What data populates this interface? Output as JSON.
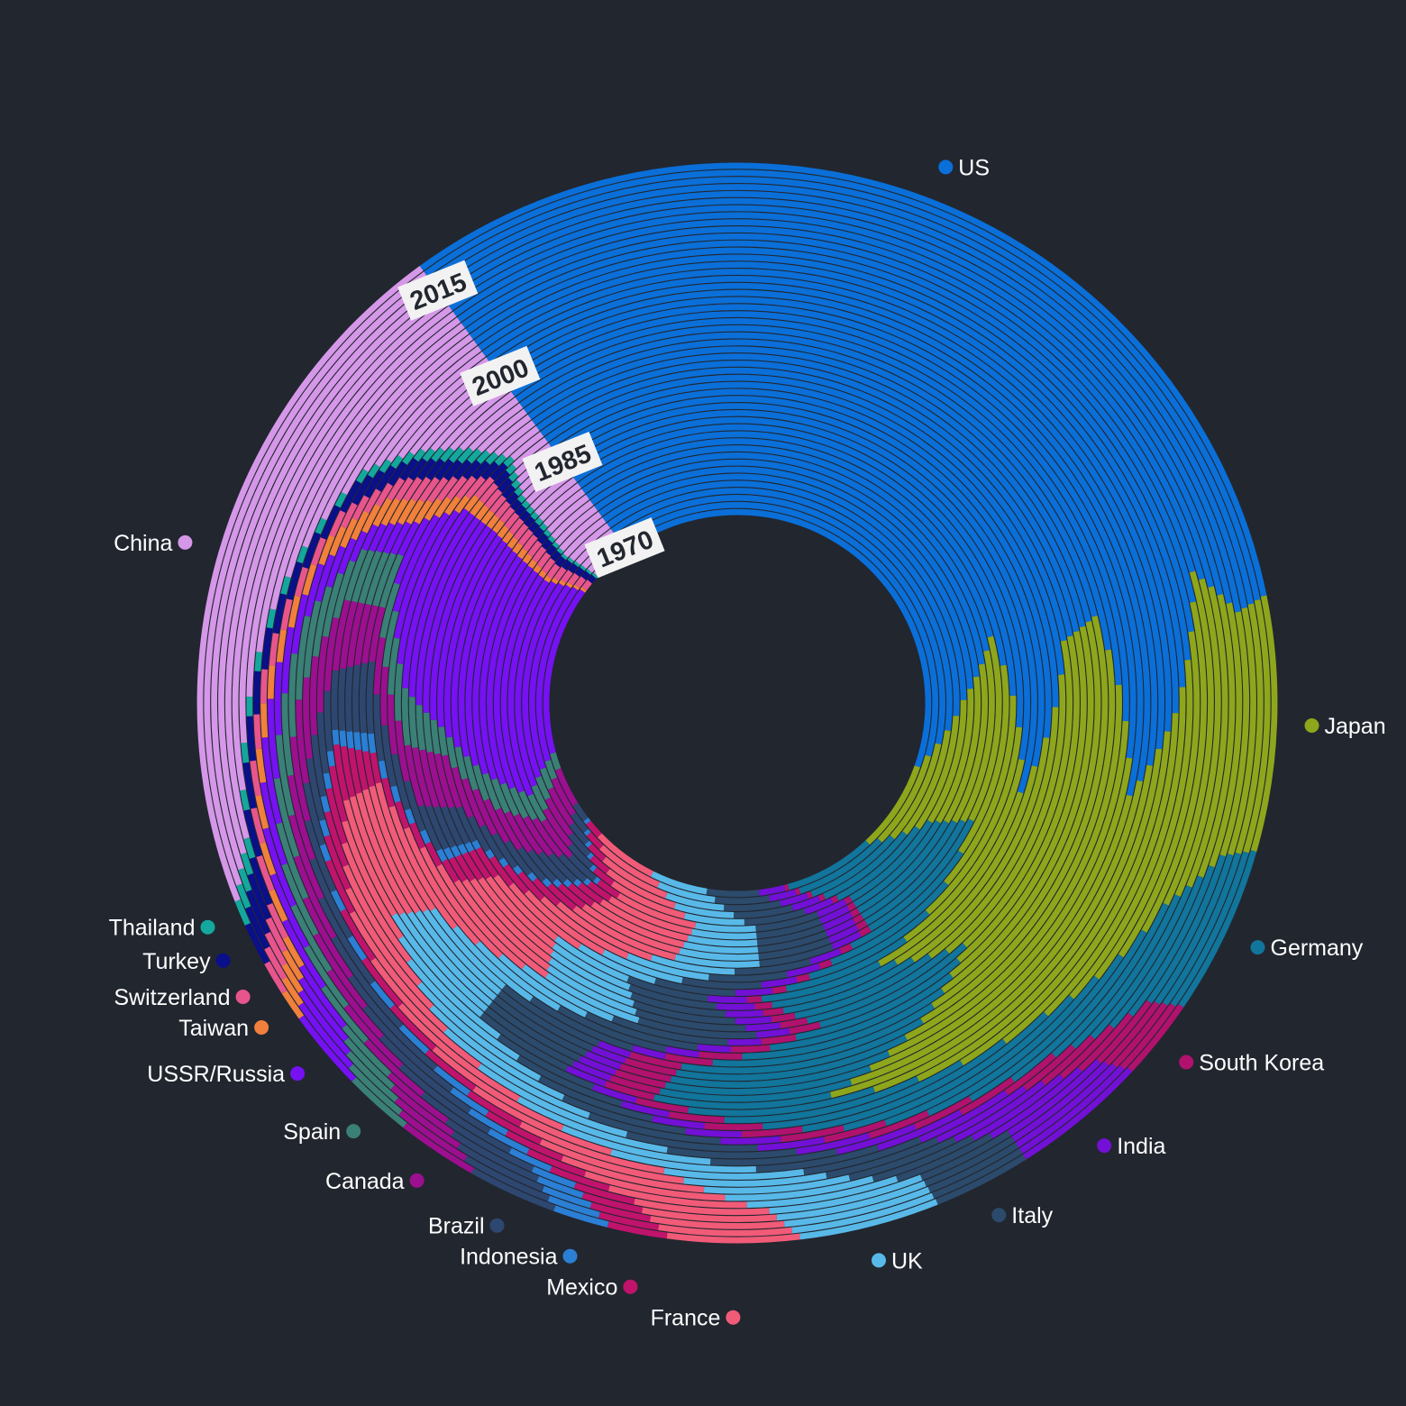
{
  "chart_data": {
    "type": "radial-stacked-area",
    "title": "",
    "start_year": 1970,
    "end_year": 2019,
    "year_labels": [
      "1970",
      "1985",
      "2000",
      "2015"
    ],
    "series": [
      {
        "name": "US",
        "color": "#0a6fd8",
        "values": [
          [
            1970,
            37
          ],
          [
            1975,
            31
          ],
          [
            1980,
            27
          ],
          [
            1985,
            36
          ],
          [
            1990,
            28
          ],
          [
            1995,
            26
          ],
          [
            2000,
            33
          ],
          [
            2005,
            29
          ],
          [
            2010,
            24
          ],
          [
            2015,
            25
          ],
          [
            2019,
            25
          ]
        ]
      },
      {
        "name": "Japan",
        "color": "#8ea61b",
        "values": [
          [
            1970,
            7
          ],
          [
            1975,
            8
          ],
          [
            1980,
            10
          ],
          [
            1985,
            11
          ],
          [
            1990,
            14
          ],
          [
            1995,
            17
          ],
          [
            2000,
            15
          ],
          [
            2005,
            10
          ],
          [
            2010,
            9
          ],
          [
            2015,
            6
          ],
          [
            2019,
            6
          ]
        ]
      },
      {
        "name": "Germany",
        "color": "#11759c",
        "values": [
          [
            1970,
            7
          ],
          [
            1975,
            7
          ],
          [
            1980,
            8
          ],
          [
            1985,
            6
          ],
          [
            1990,
            7
          ],
          [
            1995,
            9
          ],
          [
            2000,
            6
          ],
          [
            2005,
            7
          ],
          [
            2010,
            5
          ],
          [
            2015,
            4
          ],
          [
            2019,
            4
          ]
        ]
      },
      {
        "name": "South Korea",
        "color": "#b0126e",
        "values": [
          [
            1970,
            0.3
          ],
          [
            1975,
            0.4
          ],
          [
            1980,
            0.6
          ],
          [
            1985,
            0.7
          ],
          [
            1990,
            1.3
          ],
          [
            1995,
            1.9
          ],
          [
            2000,
            1.7
          ],
          [
            2005,
            1.9
          ],
          [
            2010,
            1.6
          ],
          [
            2015,
            1.9
          ],
          [
            2019,
            1.9
          ]
        ]
      },
      {
        "name": "India",
        "color": "#7210d6",
        "values": [
          [
            1970,
            2.0
          ],
          [
            1975,
            1.9
          ],
          [
            1980,
            1.6
          ],
          [
            1985,
            1.9
          ],
          [
            1990,
            1.4
          ],
          [
            1995,
            1.2
          ],
          [
            2000,
            1.4
          ],
          [
            2005,
            1.8
          ],
          [
            2010,
            2.6
          ],
          [
            2015,
            2.8
          ],
          [
            2019,
            3.2
          ]
        ]
      },
      {
        "name": "Italy",
        "color": "#2c4a6b",
        "values": [
          [
            1970,
            4
          ],
          [
            1975,
            4
          ],
          [
            1980,
            4
          ],
          [
            1985,
            4
          ],
          [
            1990,
            5
          ],
          [
            1995,
            4
          ],
          [
            2000,
            3.4
          ],
          [
            2005,
            4
          ],
          [
            2010,
            3.2
          ],
          [
            2015,
            2.4
          ],
          [
            2019,
            2.3
          ]
        ]
      },
      {
        "name": "UK",
        "color": "#58b9e8",
        "values": [
          [
            1970,
            4.4
          ],
          [
            1975,
            3.8
          ],
          [
            1980,
            4.5
          ],
          [
            1985,
            4.0
          ],
          [
            1990,
            4.3
          ],
          [
            1995,
            3.8
          ],
          [
            2000,
            4.5
          ],
          [
            2005,
            5.0
          ],
          [
            2010,
            3.7
          ],
          [
            2015,
            3.8
          ],
          [
            2019,
            3.3
          ]
        ]
      },
      {
        "name": "France",
        "color": "#f15b78",
        "values": [
          [
            1970,
            5.0
          ],
          [
            1975,
            5.2
          ],
          [
            1980,
            6.0
          ],
          [
            1985,
            4.2
          ],
          [
            1990,
            5.5
          ],
          [
            1995,
            5.0
          ],
          [
            2000,
            4.2
          ],
          [
            2005,
            4.5
          ],
          [
            2010,
            4.0
          ],
          [
            2015,
            3.3
          ],
          [
            2019,
            3.1
          ]
        ]
      },
      {
        "name": "Mexico",
        "color": "#c0136c",
        "values": [
          [
            1970,
            1.3
          ],
          [
            1975,
            1.5
          ],
          [
            1980,
            1.8
          ],
          [
            1985,
            1.6
          ],
          [
            1990,
            1.0
          ],
          [
            1995,
            1.1
          ],
          [
            2000,
            1.9
          ],
          [
            2005,
            1.7
          ],
          [
            2010,
            1.6
          ],
          [
            2015,
            1.5
          ],
          [
            2019,
            1.4
          ]
        ]
      },
      {
        "name": "Indonesia",
        "color": "#2b7fd4",
        "values": [
          [
            1970,
            0.3
          ],
          [
            1975,
            0.3
          ],
          [
            1980,
            0.4
          ],
          [
            1985,
            0.4
          ],
          [
            1990,
            0.5
          ],
          [
            1995,
            0.7
          ],
          [
            2000,
            0.5
          ],
          [
            2005,
            0.5
          ],
          [
            2010,
            1.1
          ],
          [
            2015,
            1.1
          ],
          [
            2019,
            1.3
          ]
        ]
      },
      {
        "name": "Brazil",
        "color": "#2d4770",
        "values": [
          [
            1970,
            1.4
          ],
          [
            1975,
            2.1
          ],
          [
            1980,
            2.1
          ],
          [
            1985,
            1.8
          ],
          [
            1990,
            2.0
          ],
          [
            1995,
            2.6
          ],
          [
            2000,
            2.0
          ],
          [
            2005,
            1.9
          ],
          [
            2010,
            3.3
          ],
          [
            2015,
            2.4
          ],
          [
            2019,
            2.1
          ]
        ]
      },
      {
        "name": "Canada",
        "color": "#9c0f8f",
        "values": [
          [
            1970,
            3.0
          ],
          [
            1975,
            2.8
          ],
          [
            1980,
            2.4
          ],
          [
            1985,
            2.6
          ],
          [
            1990,
            2.6
          ],
          [
            1995,
            2.0
          ],
          [
            2000,
            2.4
          ],
          [
            2005,
            2.5
          ],
          [
            2010,
            2.4
          ],
          [
            2015,
            1.8
          ],
          [
            2019,
            1.9
          ]
        ]
      },
      {
        "name": "Spain",
        "color": "#3a8076",
        "values": [
          [
            1970,
            1.3
          ],
          [
            1975,
            1.8
          ],
          [
            1980,
            2.0
          ],
          [
            1985,
            1.4
          ],
          [
            1990,
            2.4
          ],
          [
            1995,
            2.0
          ],
          [
            2000,
            1.8
          ],
          [
            2005,
            2.5
          ],
          [
            2010,
            2.1
          ],
          [
            2015,
            1.6
          ],
          [
            2019,
            1.6
          ]
        ]
      },
      {
        "name": "USSR/Russia",
        "color": "#7511f2",
        "values": [
          [
            1970,
            13
          ],
          [
            1975,
            14
          ],
          [
            1980,
            12
          ],
          [
            1985,
            10
          ],
          [
            1990,
            8
          ],
          [
            1995,
            1.3
          ],
          [
            2000,
            0.9
          ],
          [
            2005,
            1.6
          ],
          [
            2010,
            2.3
          ],
          [
            2015,
            1.8
          ],
          [
            2019,
            1.9
          ]
        ]
      },
      {
        "name": "Taiwan",
        "color": "#f0803c",
        "values": [
          [
            1970,
            0.2
          ],
          [
            1975,
            0.3
          ],
          [
            1980,
            0.5
          ],
          [
            1985,
            0.6
          ],
          [
            1990,
            0.7
          ],
          [
            1995,
            0.9
          ],
          [
            2000,
            1.0
          ],
          [
            2005,
            0.9
          ],
          [
            2010,
            0.9
          ],
          [
            2015,
            0.8
          ],
          [
            2019,
            0.7
          ]
        ]
      },
      {
        "name": "Switzerland",
        "color": "#e8558c",
        "values": [
          [
            1970,
            0.7
          ],
          [
            1975,
            0.9
          ],
          [
            1980,
            0.9
          ],
          [
            1985,
            0.8
          ],
          [
            1990,
            1.0
          ],
          [
            1995,
            1.0
          ],
          [
            2000,
            0.8
          ],
          [
            2005,
            0.8
          ],
          [
            2010,
            0.9
          ],
          [
            2015,
            0.9
          ],
          [
            2019,
            0.8
          ]
        ]
      },
      {
        "name": "Turkey",
        "color": "#0a0f8a",
        "values": [
          [
            1970,
            0.5
          ],
          [
            1975,
            0.6
          ],
          [
            1980,
            0.5
          ],
          [
            1985,
            0.5
          ],
          [
            1990,
            0.8
          ],
          [
            1995,
            0.8
          ],
          [
            2000,
            0.8
          ],
          [
            2005,
            1.0
          ],
          [
            2010,
            1.1
          ],
          [
            2015,
            1.2
          ],
          [
            2019,
            1.0
          ]
        ]
      },
      {
        "name": "Thailand",
        "color": "#14a79d",
        "values": [
          [
            1970,
            0.2
          ],
          [
            1975,
            0.2
          ],
          [
            1980,
            0.3
          ],
          [
            1985,
            0.3
          ],
          [
            1990,
            0.4
          ],
          [
            1995,
            0.6
          ],
          [
            2000,
            0.4
          ],
          [
            2005,
            0.4
          ],
          [
            2010,
            0.5
          ],
          [
            2015,
            0.5
          ],
          [
            2019,
            0.6
          ]
        ]
      },
      {
        "name": "China",
        "color": "#d597e8",
        "values": [
          [
            1970,
            3.0
          ],
          [
            1975,
            3.3
          ],
          [
            1980,
            2.7
          ],
          [
            1985,
            2.5
          ],
          [
            1990,
            1.6
          ],
          [
            1995,
            2.4
          ],
          [
            2000,
            3.6
          ],
          [
            2005,
            5.0
          ],
          [
            2010,
            9.3
          ],
          [
            2015,
            15.0
          ],
          [
            2019,
            16.5
          ]
        ]
      }
    ]
  }
}
